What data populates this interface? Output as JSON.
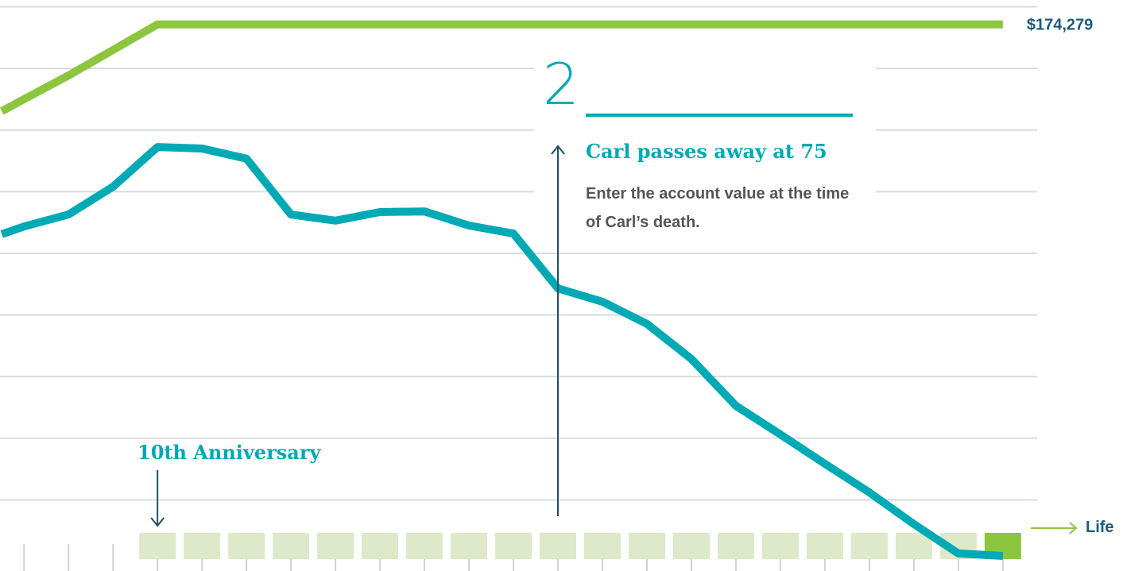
{
  "chart_data": {
    "type": "line",
    "x": [
      6.5,
      7,
      8,
      9,
      10,
      11,
      12,
      13,
      14,
      15,
      16,
      17,
      18,
      19,
      20,
      21,
      22,
      23,
      24,
      25,
      26,
      27,
      28,
      29
    ],
    "series": [
      {
        "color": "#8cc63f",
        "values": [
          146100,
          150000,
          157700,
          166000,
          174279,
          174279,
          174279,
          174279,
          174279,
          174279,
          174279,
          174279,
          174279,
          174279,
          174279,
          174279,
          174279,
          174279,
          174279,
          174279,
          174279,
          174279,
          174279,
          174279
        ],
        "value_labels": [
          null,
          null,
          null,
          null,
          null,
          null,
          null,
          null,
          null,
          null,
          null,
          null,
          null,
          null,
          null,
          null,
          null,
          null,
          null,
          null,
          null,
          null,
          null,
          "$174,279"
        ]
      },
      {
        "color": "#00aab5",
        "values": [
          106200,
          108700,
          112600,
          121600,
          134500,
          134000,
          130700,
          112600,
          110600,
          113400,
          113600,
          109000,
          106400,
          88600,
          84300,
          77100,
          65700,
          50500,
          41200,
          31700,
          22400,
          12100,
          2600,
          1800
        ]
      }
    ],
    "xlim": [
      6.46,
      31.7
    ],
    "ylim": [
      0,
      182200
    ],
    "xticks": [
      7,
      8,
      9,
      10,
      11,
      12,
      13,
      14,
      15,
      16,
      17,
      18,
      19,
      20,
      21,
      22,
      23,
      24,
      25,
      26,
      27,
      28,
      29
    ],
    "yticks": [
      20000,
      40000,
      60000,
      80000,
      100000,
      120000,
      140000,
      160000,
      180000
    ],
    "grid": true,
    "x_axis_label": "Life",
    "annotations": [
      {
        "x": 10,
        "text": "10th Anniversary"
      },
      {
        "x": 19,
        "number": "2",
        "title": "Carl passes away at 75",
        "text": "Enter the account value at the time of Carl’s death."
      }
    ]
  }
}
